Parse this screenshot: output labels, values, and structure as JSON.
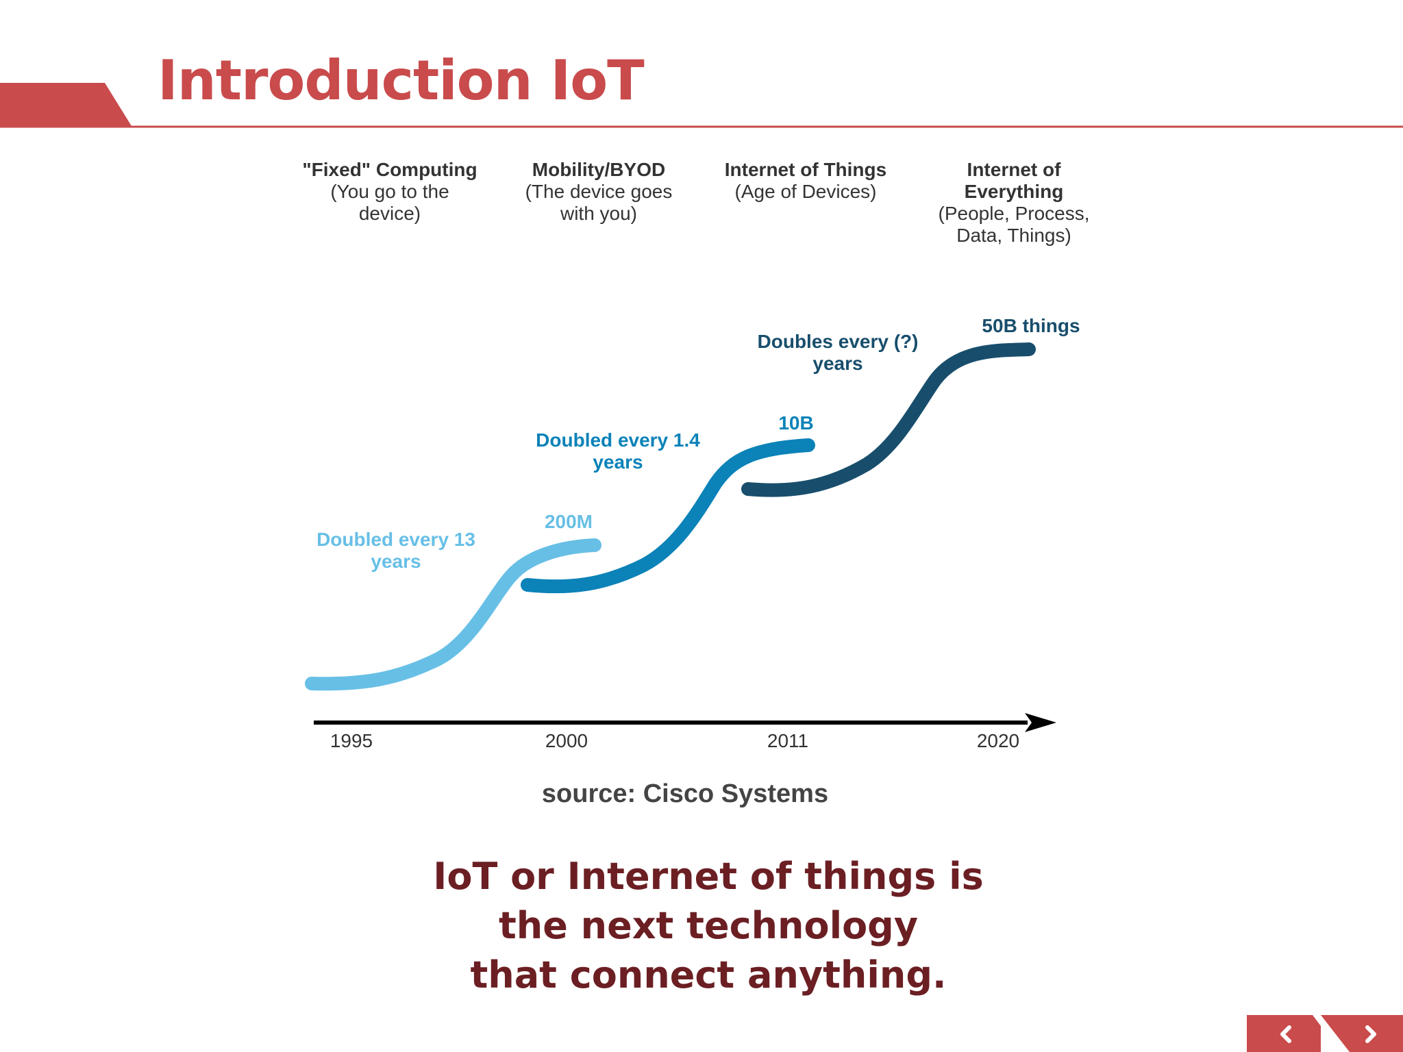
{
  "slide": {
    "title": "Introduction IoT",
    "accent_color": "#c94b4c"
  },
  "eras": [
    {
      "title": "\"Fixed\" Computing",
      "desc_lines": [
        "(You go to the",
        "device)"
      ]
    },
    {
      "title": "Mobility/BYOD",
      "desc_lines": [
        "(The device goes",
        "with you)"
      ]
    },
    {
      "title": "Internet of Things",
      "desc_lines": [
        "(Age of Devices)"
      ]
    },
    {
      "title_lines": [
        "Internet of",
        "Everything"
      ],
      "desc_lines": [
        "(People, Process,",
        "Data, Things)"
      ]
    }
  ],
  "curves": [
    {
      "label_lines": [
        "Doubled every 13",
        "years"
      ],
      "end_value": "200M",
      "color": "#67bfe6"
    },
    {
      "label_lines": [
        "Doubled every 1.4",
        "years"
      ],
      "end_value": "10B",
      "color": "#0b82b8"
    },
    {
      "label_lines": [
        "Doubles every (?)",
        "years"
      ],
      "end_value": "50B things",
      "color": "#184e6c"
    }
  ],
  "timeline": {
    "years": [
      "1995",
      "2000",
      "2011",
      "2020"
    ]
  },
  "source": "source: Cisco Systems",
  "statement_lines": [
    "IoT or Internet of things is",
    "the next technology",
    "that connect anything."
  ],
  "nav": {
    "prev_icon": "chevron-left-icon",
    "next_icon": "chevron-right-icon",
    "color": "#c94b4c"
  }
}
